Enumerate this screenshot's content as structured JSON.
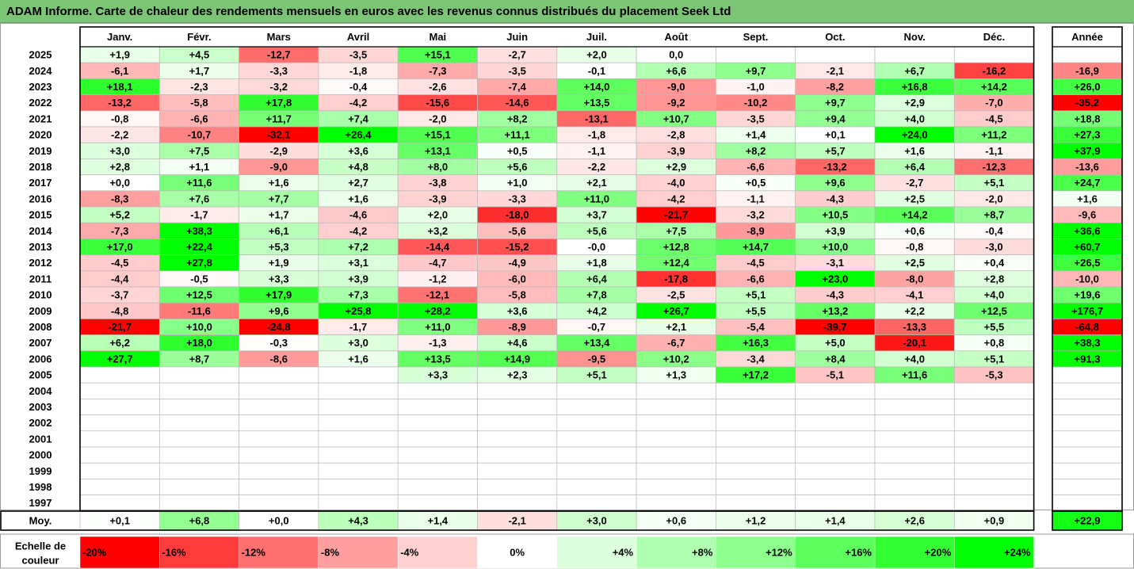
{
  "title": "ADAM Informe. Carte de chaleur des rendements mensuels en euros avec les revenus connus distribués du placement Seek Ltd",
  "chart_data": {
    "type": "heatmap",
    "months": [
      "Janv.",
      "Févr.",
      "Mars",
      "Avril",
      "Mai",
      "Juin",
      "Juil.",
      "Août",
      "Sept.",
      "Oct.",
      "Nov.",
      "Déc."
    ],
    "year_header": "Année",
    "rows": [
      {
        "year": "2025",
        "values": [
          "+1,9",
          "+4,5",
          "-12,7",
          "-3,5",
          "+15,1",
          "-2,7",
          "+2,0",
          "0,0",
          "",
          "",
          "",
          ""
        ],
        "annual": ""
      },
      {
        "year": "2024",
        "values": [
          "-6,1",
          "+1,7",
          "-3,3",
          "-1,8",
          "-7,3",
          "-3,5",
          "-0,1",
          "+6,6",
          "+9,7",
          "-2,1",
          "+6,7",
          "-16,2"
        ],
        "annual": "-16,9"
      },
      {
        "year": "2023",
        "values": [
          "+18,1",
          "-2,3",
          "-3,2",
          "-0,4",
          "-2,6",
          "-7,4",
          "+14,0",
          "-9,0",
          "-1,0",
          "-8,2",
          "+16,8",
          "+14,2"
        ],
        "annual": "+26,0"
      },
      {
        "year": "2022",
        "values": [
          "-13,2",
          "-5,8",
          "+17,8",
          "-4,2",
          "-15,6",
          "-14,6",
          "+13,5",
          "-9,2",
          "-10,2",
          "+9,7",
          "+2,9",
          "-7,0"
        ],
        "annual": "-35,2"
      },
      {
        "year": "2021",
        "values": [
          "-0,8",
          "-6,6",
          "+11,7",
          "+7,4",
          "-2,0",
          "+8,2",
          "-13,1",
          "+10,7",
          "-3,5",
          "+9,4",
          "+4,0",
          "-4,5"
        ],
        "annual": "+18,8"
      },
      {
        "year": "2020",
        "values": [
          "-2,2",
          "-10,7",
          "-32,1",
          "+26,4",
          "+15,1",
          "+11,1",
          "-1,8",
          "-2,8",
          "+1,4",
          "+0,1",
          "+24,0",
          "+11,2"
        ],
        "annual": "+27,3"
      },
      {
        "year": "2019",
        "values": [
          "+3,0",
          "+7,5",
          "-2,9",
          "+3,6",
          "+13,1",
          "+0,5",
          "-1,1",
          "-3,9",
          "+8,2",
          "+5,7",
          "+1,6",
          "-1,1"
        ],
        "annual": "+37,9"
      },
      {
        "year": "2018",
        "values": [
          "+2,8",
          "+1,1",
          "-9,0",
          "+4,8",
          "+8,0",
          "+5,6",
          "-2,2",
          "+2,9",
          "-6,6",
          "-13,2",
          "+6,4",
          "-12,3"
        ],
        "annual": "-13,6"
      },
      {
        "year": "2017",
        "values": [
          "+0,0",
          "+11,6",
          "+1,6",
          "+2,7",
          "-3,8",
          "+1,0",
          "+2,1",
          "-4,0",
          "+0,5",
          "+9,6",
          "-2,7",
          "+5,1"
        ],
        "annual": "+24,7"
      },
      {
        "year": "2016",
        "values": [
          "-8,3",
          "+7,6",
          "+7,7",
          "+1,6",
          "-3,9",
          "-3,3",
          "+11,0",
          "-4,2",
          "-1,1",
          "-4,3",
          "+2,5",
          "-2,0"
        ],
        "annual": "+1,6"
      },
      {
        "year": "2015",
        "values": [
          "+5,2",
          "-1,7",
          "+1,7",
          "-4,6",
          "+2,0",
          "-18,0",
          "+3,7",
          "-21,7",
          "-3,2",
          "+10,5",
          "+14,2",
          "+8,7"
        ],
        "annual": "-9,6"
      },
      {
        "year": "2014",
        "values": [
          "-7,3",
          "+38,3",
          "+6,1",
          "-4,2",
          "+3,2",
          "-5,6",
          "+5,6",
          "+7,5",
          "-8,9",
          "+3,9",
          "+0,6",
          "-0,4"
        ],
        "annual": "+36,6"
      },
      {
        "year": "2013",
        "values": [
          "+17,0",
          "+22,4",
          "+5,3",
          "+7,2",
          "-14,4",
          "-15,2",
          "-0,0",
          "+12,8",
          "+14,7",
          "+10,0",
          "-0,8",
          "-3,0"
        ],
        "annual": "+60,7"
      },
      {
        "year": "2012",
        "values": [
          "-4,5",
          "+27,8",
          "+1,9",
          "+3,1",
          "-4,7",
          "-4,9",
          "+1,8",
          "+12,4",
          "-4,5",
          "-3,1",
          "+2,5",
          "+0,4"
        ],
        "annual": "+26,5"
      },
      {
        "year": "2011",
        "values": [
          "-4,4",
          "-0,5",
          "+3,3",
          "+3,9",
          "-1,2",
          "-6,0",
          "+6,4",
          "-17,8",
          "-6,6",
          "+23,0",
          "-8,0",
          "+2,8"
        ],
        "annual": "-10,0"
      },
      {
        "year": "2010",
        "values": [
          "-3,7",
          "+12,5",
          "+17,9",
          "+7,3",
          "-12,1",
          "-5,8",
          "+7,8",
          "-2,5",
          "+5,1",
          "-4,3",
          "-4,1",
          "+4,0"
        ],
        "annual": "+19,6"
      },
      {
        "year": "2009",
        "values": [
          "-4,8",
          "-11,6",
          "+9,6",
          "+25,8",
          "+28,2",
          "+3,6",
          "+4,2",
          "+26,7",
          "+5,5",
          "+13,2",
          "+2,2",
          "+12,5"
        ],
        "annual": "+176,7"
      },
      {
        "year": "2008",
        "values": [
          "-21,7",
          "+10,0",
          "-24,8",
          "-1,7",
          "+11,0",
          "-8,9",
          "-0,7",
          "+2,1",
          "-5,4",
          "-39,7",
          "-13,3",
          "+5,5"
        ],
        "annual": "-64,8"
      },
      {
        "year": "2007",
        "values": [
          "+6,2",
          "+18,0",
          "-0,3",
          "+3,0",
          "-1,3",
          "+4,6",
          "+13,4",
          "-6,7",
          "+16,3",
          "+5,0",
          "-20,1",
          "+0,8"
        ],
        "annual": "+38,3"
      },
      {
        "year": "2006",
        "values": [
          "+27,7",
          "+8,7",
          "-8,6",
          "+1,6",
          "+13,5",
          "+14,9",
          "-9,5",
          "+10,2",
          "-3,4",
          "+8,4",
          "+4,0",
          "+5,1"
        ],
        "annual": "+91,3"
      },
      {
        "year": "2005",
        "values": [
          "",
          "",
          "",
          "",
          "+3,3",
          "+2,3",
          "+5,1",
          "+1,3",
          "+17,2",
          "-5,1",
          "+11,6",
          "-5,3"
        ],
        "annual": ""
      },
      {
        "year": "2004",
        "values": [
          "",
          "",
          "",
          "",
          "",
          "",
          "",
          "",
          "",
          "",
          "",
          ""
        ],
        "annual": ""
      },
      {
        "year": "2003",
        "values": [
          "",
          "",
          "",
          "",
          "",
          "",
          "",
          "",
          "",
          "",
          "",
          ""
        ],
        "annual": ""
      },
      {
        "year": "2002",
        "values": [
          "",
          "",
          "",
          "",
          "",
          "",
          "",
          "",
          "",
          "",
          "",
          ""
        ],
        "annual": ""
      },
      {
        "year": "2001",
        "values": [
          "",
          "",
          "",
          "",
          "",
          "",
          "",
          "",
          "",
          "",
          "",
          ""
        ],
        "annual": ""
      },
      {
        "year": "2000",
        "values": [
          "",
          "",
          "",
          "",
          "",
          "",
          "",
          "",
          "",
          "",
          "",
          ""
        ],
        "annual": ""
      },
      {
        "year": "1999",
        "values": [
          "",
          "",
          "",
          "",
          "",
          "",
          "",
          "",
          "",
          "",
          "",
          ""
        ],
        "annual": ""
      },
      {
        "year": "1998",
        "values": [
          "",
          "",
          "",
          "",
          "",
          "",
          "",
          "",
          "",
          "",
          "",
          ""
        ],
        "annual": ""
      },
      {
        "year": "1997",
        "values": [
          "",
          "",
          "",
          "",
          "",
          "",
          "",
          "",
          "",
          "",
          "",
          ""
        ],
        "annual": ""
      }
    ],
    "average": {
      "label": "Moy.",
      "values": [
        "+0,1",
        "+6,8",
        "+0,0",
        "+4,3",
        "+1,4",
        "-2,1",
        "+3,0",
        "+0,6",
        "+1,2",
        "+1,4",
        "+2,6",
        "+0,9"
      ],
      "annual": "+22,9"
    },
    "scale": {
      "label": "Echelle de couleur",
      "labels": [
        "-20%",
        "-16%",
        "-12%",
        "-8%",
        "-4%",
        "0%",
        "+4%",
        "+8%",
        "+12%",
        "+16%",
        "+20%",
        "+24%"
      ],
      "colors": [
        "#ff0000",
        "#ff3b3b",
        "#ff7070",
        "#ff9e9e",
        "#ffd0d0",
        "#ffffff",
        "#dcffdc",
        "#b0ffb0",
        "#8cff8c",
        "#5cff5c",
        "#33ff33",
        "#00ff00"
      ]
    },
    "colors": {
      "negative_max": "#ff0000",
      "positive_max": "#00ff00",
      "neutral": "#ffffff"
    }
  }
}
